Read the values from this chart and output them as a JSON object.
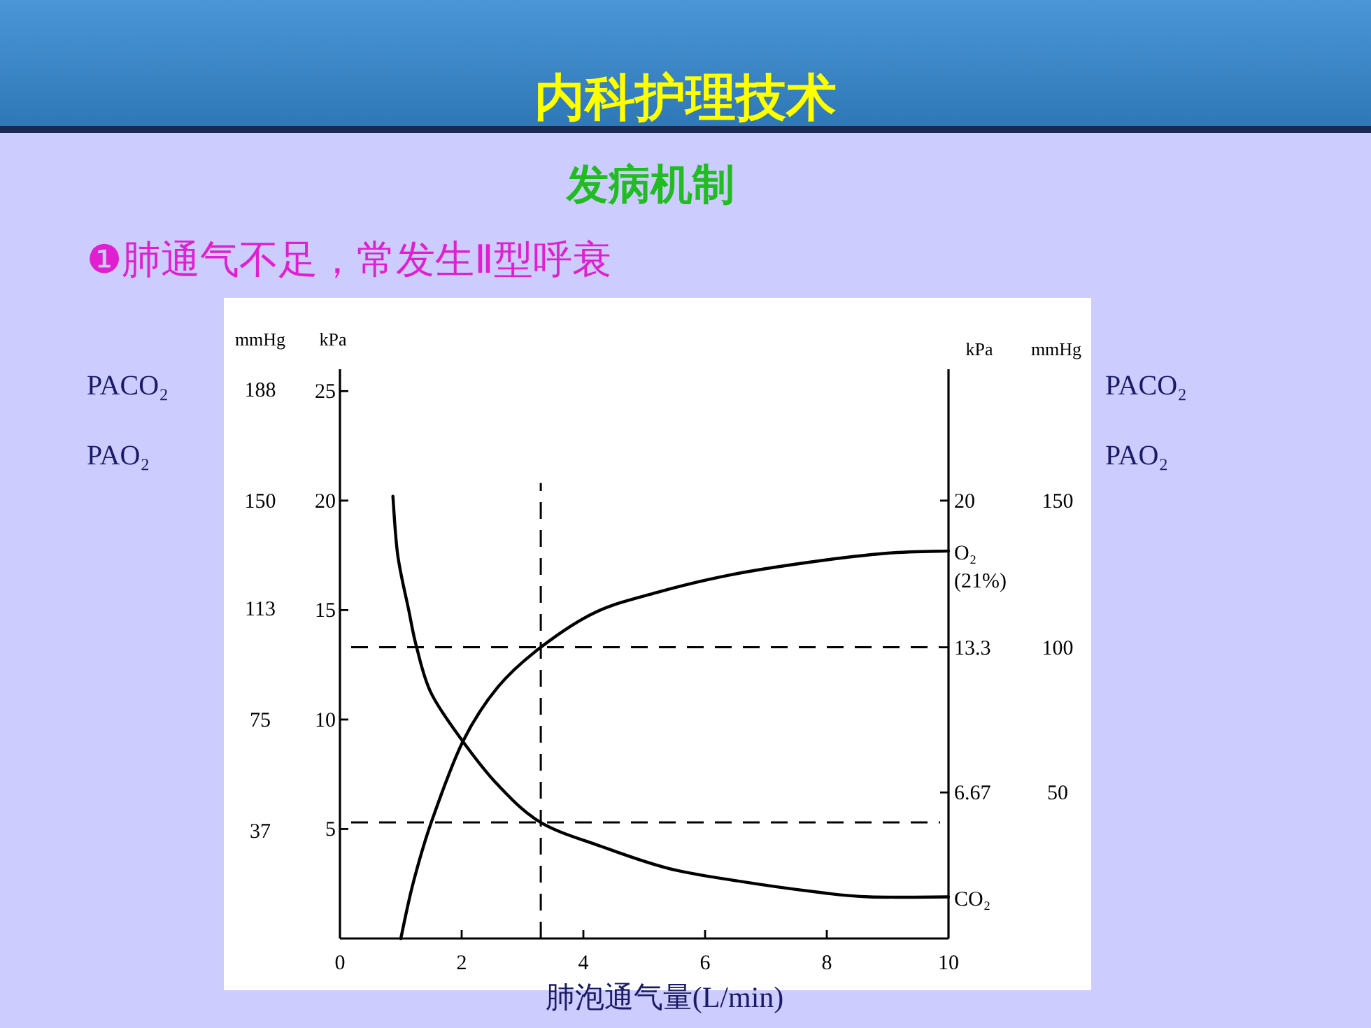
{
  "chart_data": {
    "type": "line",
    "title": "内科护理技术",
    "subtitle": "发病机制",
    "annotations": [
      "❶肺通气不足，常发生Ⅱ型呼衰",
      "PACO₂",
      "PAO₂",
      "PACO₂",
      "PAO₂",
      "mmHg",
      "50",
      "100",
      "150"
    ],
    "xlabel": "肺泡通气量(L/min)",
    "ylabel": "kPa",
    "y2label": "kPa",
    "y3label": "mmHg",
    "xlim": [
      0,
      10
    ],
    "xticks": [
      0,
      2,
      4,
      6,
      8,
      10
    ],
    "ylim": [
      0,
      26
    ],
    "yticks": [
      5,
      10,
      15,
      20,
      25
    ],
    "y2lim": [
      0,
      26
    ],
    "y2ticks": [
      6.67,
      13.3,
      20
    ],
    "y3lim": [
      0,
      195
    ],
    "y3ticks": [
      37,
      75,
      113,
      150,
      188
    ],
    "grid": false,
    "marker": "none",
    "line_style": "solid",
    "ref_lines": [
      {
        "axis": "y",
        "value": 13.3,
        "line_style": "dashed",
        "color": "#000000"
      },
      {
        "axis": "y",
        "value": 5.3,
        "line_style": "dashed",
        "color": "#000000"
      },
      {
        "axis": "x",
        "value": 3.3,
        "line_style": "dashed",
        "color": "#000000"
      }
    ],
    "series": [
      {
        "name": "CO₂",
        "color": "#000000",
        "x": [
          0.87,
          0.95,
          1.13,
          1.26,
          1.5,
          2.02,
          2.6,
          3.3,
          4.3,
          5.4,
          6.6,
          7.9,
          8.7,
          10
        ],
        "values": [
          20.2,
          17.5,
          15,
          13.3,
          11.2,
          9.0,
          7.0,
          5.3,
          4.2,
          3.2,
          2.6,
          2.1,
          1.9,
          1.9
        ]
      },
      {
        "name": "O₂\n(21%)",
        "color": "#000000",
        "x": [
          1.0,
          1.2,
          1.5,
          2.02,
          2.6,
          3.3,
          4.2,
          5.2,
          6.4,
          7.75,
          9,
          10
        ],
        "values": [
          0,
          2.5,
          5.3,
          9.0,
          11.5,
          13.3,
          14.9,
          15.8,
          16.6,
          17.2,
          17.6,
          17.7
        ]
      }
    ]
  }
}
